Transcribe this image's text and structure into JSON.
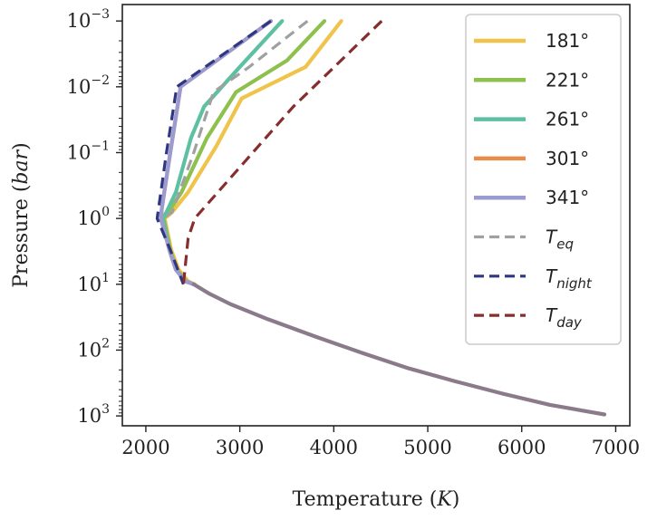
{
  "chart_data": {
    "type": "line",
    "xlabel": "Temperature (K)",
    "ylabel": "Pressure (bar)",
    "xlim": [
      1750,
      7150
    ],
    "ylim_log10": [
      -3.25,
      3.15
    ],
    "y_scale": "log",
    "y_inverted": true,
    "legend_position": "top-right",
    "x_ticks": [
      {
        "value": 2000,
        "label": "2000"
      },
      {
        "value": 3000,
        "label": "3000"
      },
      {
        "value": 4000,
        "label": "4000"
      },
      {
        "value": 5000,
        "label": "5000"
      },
      {
        "value": 6000,
        "label": "6000"
      },
      {
        "value": 7000,
        "label": "7000"
      }
    ],
    "y_ticks": [
      {
        "value": 0.001,
        "base": "10",
        "exp": "−3"
      },
      {
        "value": 0.01,
        "base": "10",
        "exp": "−2"
      },
      {
        "value": 0.1,
        "base": "10",
        "exp": "−1"
      },
      {
        "value": 1,
        "base": "10",
        "exp": "0"
      },
      {
        "value": 10,
        "base": "10",
        "exp": "1"
      },
      {
        "value": 100,
        "base": "10",
        "exp": "2"
      },
      {
        "value": 1000,
        "base": "10",
        "exp": "3"
      }
    ],
    "series": [
      {
        "name": "181°",
        "color": "#f0c44a",
        "dash": "solid",
        "points": [
          [
            4080,
            0.001
          ],
          [
            3700,
            0.005
          ],
          [
            3020,
            0.015
          ],
          [
            2750,
            0.08
          ],
          [
            2450,
            0.4
          ],
          [
            2280,
            0.8
          ],
          [
            2200,
            1.0
          ],
          [
            2270,
            3.0
          ],
          [
            2350,
            6.0
          ],
          [
            2450,
            9.0
          ],
          [
            2520,
            10.0
          ]
        ]
      },
      {
        "name": "221°",
        "color": "#8ec04e",
        "dash": "solid",
        "points": [
          [
            3900,
            0.001
          ],
          [
            3500,
            0.004
          ],
          [
            2960,
            0.012
          ],
          [
            2650,
            0.06
          ],
          [
            2380,
            0.4
          ],
          [
            2240,
            0.8
          ],
          [
            2190,
            1.0
          ],
          [
            2260,
            3.0
          ],
          [
            2330,
            6.0
          ],
          [
            2430,
            9.0
          ],
          [
            2510,
            10.0
          ]
        ]
      },
      {
        "name": "261°",
        "color": "#5ec0a2",
        "dash": "solid",
        "points": [
          [
            3450,
            0.001
          ],
          [
            3000,
            0.005
          ],
          [
            2620,
            0.02
          ],
          [
            2480,
            0.06
          ],
          [
            2320,
            0.4
          ],
          [
            2220,
            0.8
          ],
          [
            2180,
            1.0
          ],
          [
            2250,
            3.0
          ],
          [
            2320,
            6.0
          ],
          [
            2420,
            9.0
          ],
          [
            2510,
            10.0
          ]
        ]
      },
      {
        "name": "301°",
        "color": "#e98c4a",
        "dash": "solid",
        "points": [
          [
            3330,
            0.001
          ],
          [
            2370,
            0.01
          ],
          [
            2260,
            0.1
          ],
          [
            2170,
            0.7
          ],
          [
            2160,
            1.0
          ],
          [
            2250,
            3.0
          ],
          [
            2320,
            6.0
          ],
          [
            2420,
            9.0
          ],
          [
            2510,
            10.0
          ]
        ]
      },
      {
        "name": "341°",
        "color": "#9b9bd2",
        "dash": "solid",
        "points": [
          [
            3330,
            0.001
          ],
          [
            2370,
            0.01
          ],
          [
            2260,
            0.1
          ],
          [
            2170,
            0.7
          ],
          [
            2160,
            1.0
          ],
          [
            2250,
            3.0
          ],
          [
            2320,
            6.0
          ],
          [
            2420,
            9.0
          ],
          [
            2510,
            10.0
          ]
        ]
      },
      {
        "name": "T_eq",
        "color": "#a0a0a0",
        "dash": "dashed",
        "points": [
          [
            3720,
            0.001
          ],
          [
            3100,
            0.005
          ],
          [
            2720,
            0.012
          ],
          [
            2510,
            0.1
          ],
          [
            2280,
            0.8
          ],
          [
            2190,
            1.0
          ]
        ]
      },
      {
        "name": "T_night",
        "color": "#2f3781",
        "dash": "dashed",
        "points": [
          [
            3330,
            0.001
          ],
          [
            2330,
            0.01
          ],
          [
            2220,
            0.1
          ],
          [
            2130,
            0.8
          ],
          [
            2120,
            1.0
          ],
          [
            2260,
            3.0
          ],
          [
            2400,
            10.0
          ]
        ]
      },
      {
        "name": "T_day",
        "color": "#862e2e",
        "dash": "dashed",
        "points": [
          [
            4510,
            0.001
          ],
          [
            3570,
            0.02
          ],
          [
            2520,
            1.0
          ],
          [
            2450,
            2.0
          ],
          [
            2400,
            10.0
          ]
        ]
      },
      {
        "name": "",
        "color": "#8a7a8a",
        "dash": "solid",
        "points": [
          [
            2510,
            10
          ],
          [
            2680,
            14
          ],
          [
            2900,
            20
          ],
          [
            3300,
            34
          ],
          [
            3800,
            62
          ],
          [
            4300,
            110
          ],
          [
            4800,
            190
          ],
          [
            5300,
            300
          ],
          [
            5800,
            460
          ],
          [
            6300,
            680
          ],
          [
            6880,
            950
          ]
        ]
      }
    ]
  },
  "legend": [
    {
      "text": "181°",
      "sub": "",
      "color": "#f0c44a",
      "dash": "solid"
    },
    {
      "text": "221°",
      "sub": "",
      "color": "#8ec04e",
      "dash": "solid"
    },
    {
      "text": "261°",
      "sub": "",
      "color": "#5ec0a2",
      "dash": "solid"
    },
    {
      "text": "301°",
      "sub": "",
      "color": "#e98c4a",
      "dash": "solid"
    },
    {
      "text": "341°",
      "sub": "",
      "color": "#9b9bd2",
      "dash": "solid"
    },
    {
      "text": "T",
      "sub": "eq",
      "color": "#a0a0a0",
      "dash": "dashed"
    },
    {
      "text": "T",
      "sub": "night",
      "color": "#2f3781",
      "dash": "dashed"
    },
    {
      "text": "T",
      "sub": "day",
      "color": "#862e2e",
      "dash": "dashed"
    }
  ]
}
